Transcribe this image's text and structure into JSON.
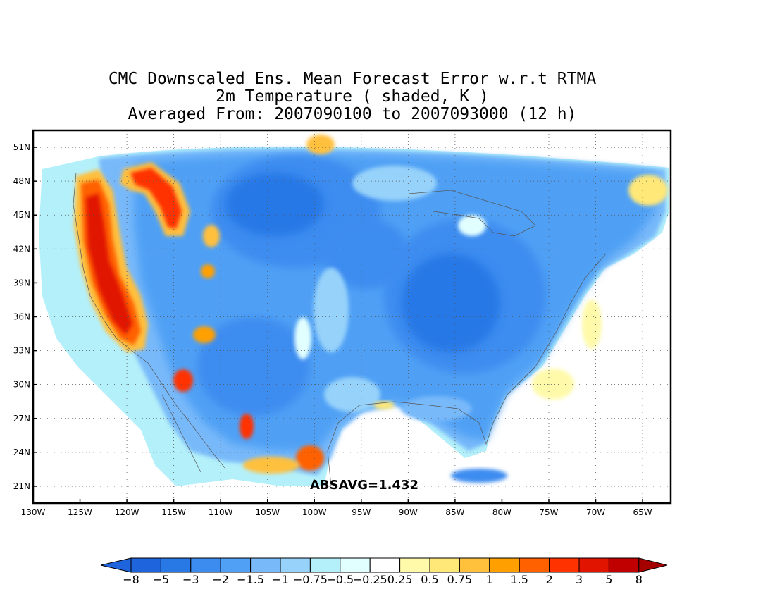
{
  "title": {
    "line1": "CMC Downscaled Ens. Mean Forecast Error w.r.t RTMA",
    "line2": "2m Temperature ( shaded, K )",
    "line3": "Averaged From: 2007090100 to 2007093000 (12 h)"
  },
  "map": {
    "lon_range": [
      -130,
      -62
    ],
    "lat_range": [
      19.5,
      52.5
    ],
    "lat_ticks": [
      {
        "value": 51,
        "label": "51N"
      },
      {
        "value": 48,
        "label": "48N"
      },
      {
        "value": 45,
        "label": "45N"
      },
      {
        "value": 42,
        "label": "42N"
      },
      {
        "value": 39,
        "label": "39N"
      },
      {
        "value": 36,
        "label": "36N"
      },
      {
        "value": 33,
        "label": "33N"
      },
      {
        "value": 30,
        "label": "30N"
      },
      {
        "value": 27,
        "label": "27N"
      },
      {
        "value": 24,
        "label": "24N"
      },
      {
        "value": 21,
        "label": "21N"
      }
    ],
    "lon_ticks": [
      {
        "value": -130,
        "label": "130W"
      },
      {
        "value": -125,
        "label": "125W"
      },
      {
        "value": -120,
        "label": "120W"
      },
      {
        "value": -115,
        "label": "115W"
      },
      {
        "value": -110,
        "label": "110W"
      },
      {
        "value": -105,
        "label": "105W"
      },
      {
        "value": -100,
        "label": "100W"
      },
      {
        "value": -95,
        "label": "95W"
      },
      {
        "value": -90,
        "label": "90W"
      },
      {
        "value": -85,
        "label": "85W"
      },
      {
        "value": -80,
        "label": "80W"
      },
      {
        "value": -75,
        "label": "75W"
      },
      {
        "value": -70,
        "label": "70W"
      },
      {
        "value": -65,
        "label": "65W"
      }
    ],
    "grid": true,
    "absavg_text": "ABSAVG=1.432"
  },
  "colorbar": {
    "labels": [
      "−8",
      "−5",
      "−3",
      "−2",
      "−1.5",
      "−1",
      "−0.75",
      "−0.5",
      "−0.25",
      "0.25",
      "0.5",
      "0.75",
      "1",
      "1.5",
      "2",
      "3",
      "5",
      "8"
    ],
    "colors": [
      "#1e64dc",
      "#2878e6",
      "#3c8cf0",
      "#50a0f5",
      "#78b9fa",
      "#96d2fa",
      "#b4f0fa",
      "#e1ffff",
      "#ffffff",
      "#fffaaa",
      "#ffe878",
      "#ffc03c",
      "#ffa000",
      "#ff6000",
      "#ff3200",
      "#e11400",
      "#c00000"
    ],
    "left_cap_color": "#1e64dc",
    "right_cap_color": "#a50000"
  },
  "palette": {
    "d4": "#1e64dc",
    "d3": "#2878e6",
    "d2": "#3c8cf0",
    "d1": "#50a0f5",
    "m2": "#78b9fa",
    "m1": "#96d2fa",
    "l2": "#b4f0fa",
    "l1": "#e1ffff",
    "y1": "#fffaaa",
    "y2": "#ffe878",
    "o1": "#ffc03c",
    "o2": "#ffa000",
    "o3": "#ff6000",
    "r1": "#ff3200",
    "r2": "#e11400",
    "r3": "#c00000"
  }
}
